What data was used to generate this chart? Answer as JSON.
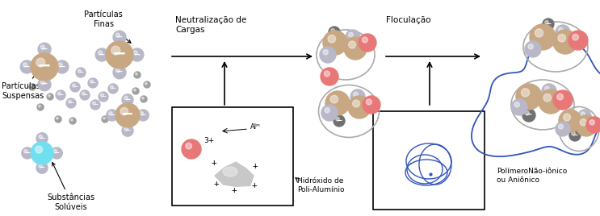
{
  "bg_color": "#ffffff",
  "tan_color": "#c8a882",
  "gray_color": "#a0a0a0",
  "dark_gray": "#707070",
  "silver_color": "#b8b8c8",
  "cyan_color": "#70e0f0",
  "pink_color": "#e87878",
  "light_gray": "#c8c8c8",
  "blue_color": "#3355bb",
  "labels": {
    "particulas_finas": "Partículas\nFinas",
    "particulas_suspensas": "Partículas\nSuspensas",
    "substancias_soluveis": "Substâncias\nSolúveis",
    "neutralizacao": "Neutralização de\nCargas",
    "floculacao": "Floculação",
    "hidroxido": "Hidróxido de\nPoli-Alumínio",
    "polimero": "PolímeroNão-iônico\nou Aniônico"
  }
}
